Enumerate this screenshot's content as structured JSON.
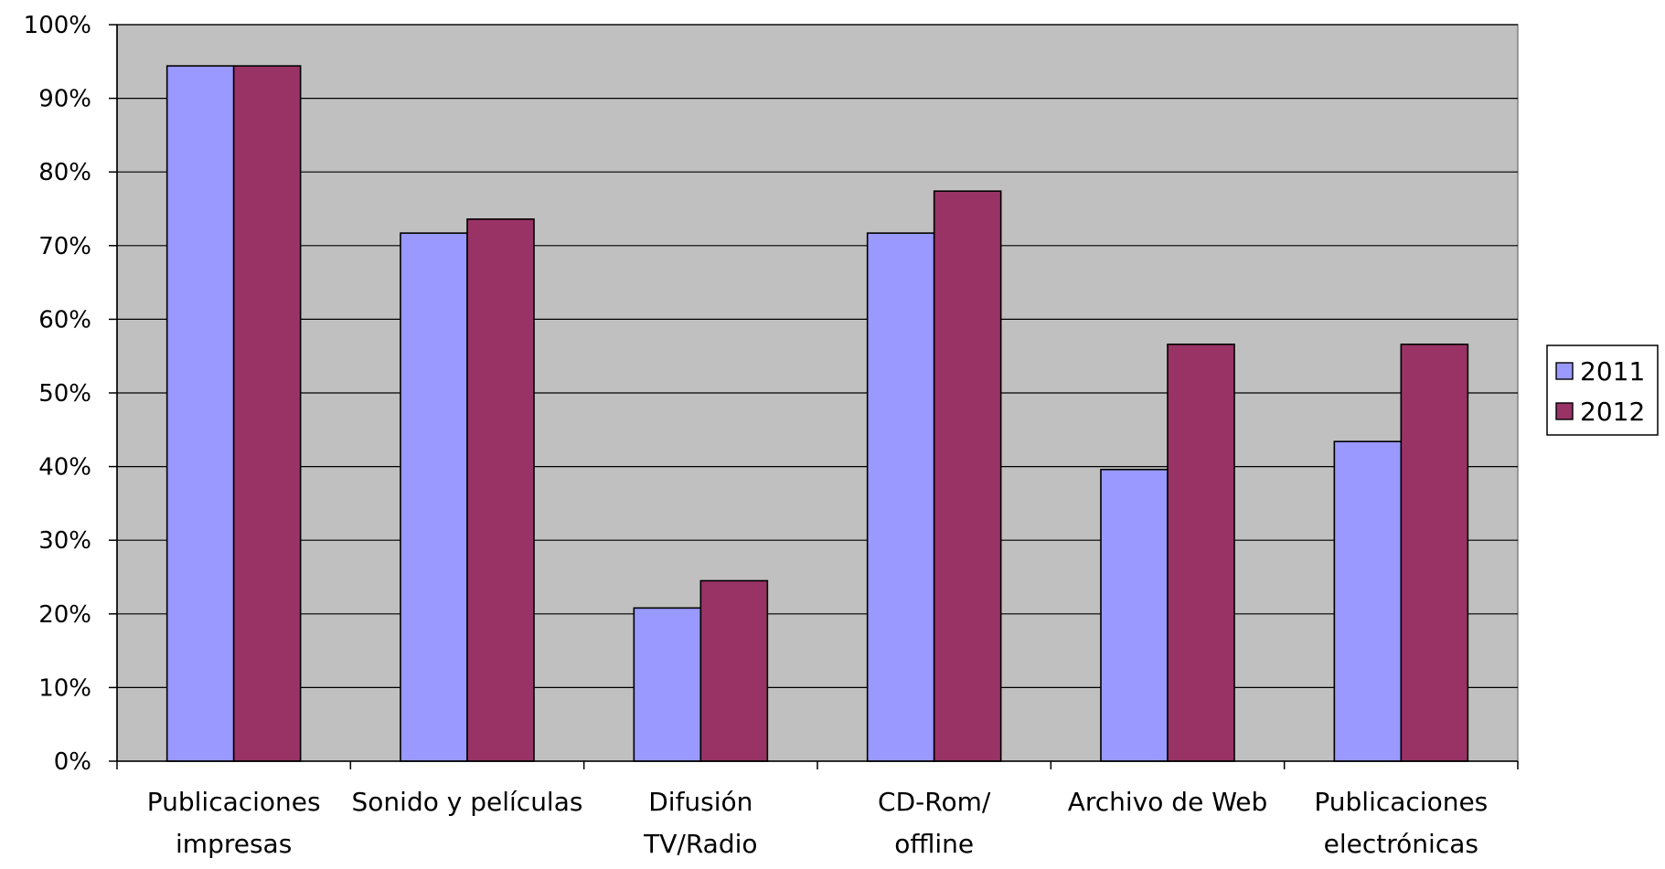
{
  "chart_data": {
    "type": "bar",
    "categories": [
      [
        "Publicaciones",
        "impresas"
      ],
      [
        "Sonido y películas"
      ],
      [
        "Difusión",
        "TV/Radio"
      ],
      [
        "CD-Rom/",
        "offline"
      ],
      [
        "Archivo de Web"
      ],
      [
        "Publicaciones",
        "electrónicas"
      ]
    ],
    "series": [
      {
        "name": "2011",
        "color": "#9999FF",
        "values": [
          94.4,
          71.7,
          20.8,
          71.7,
          39.6,
          43.4
        ]
      },
      {
        "name": "2012",
        "color": "#993366",
        "values": [
          94.4,
          73.6,
          24.5,
          77.4,
          56.6,
          56.6
        ]
      }
    ],
    "y_ticks": [
      "0%",
      "10%",
      "20%",
      "30%",
      "40%",
      "50%",
      "60%",
      "70%",
      "80%",
      "90%",
      "100%"
    ],
    "ylim": [
      0,
      100
    ],
    "plot_background": "#C0C0C0",
    "grid": true,
    "legend_position": "right"
  }
}
